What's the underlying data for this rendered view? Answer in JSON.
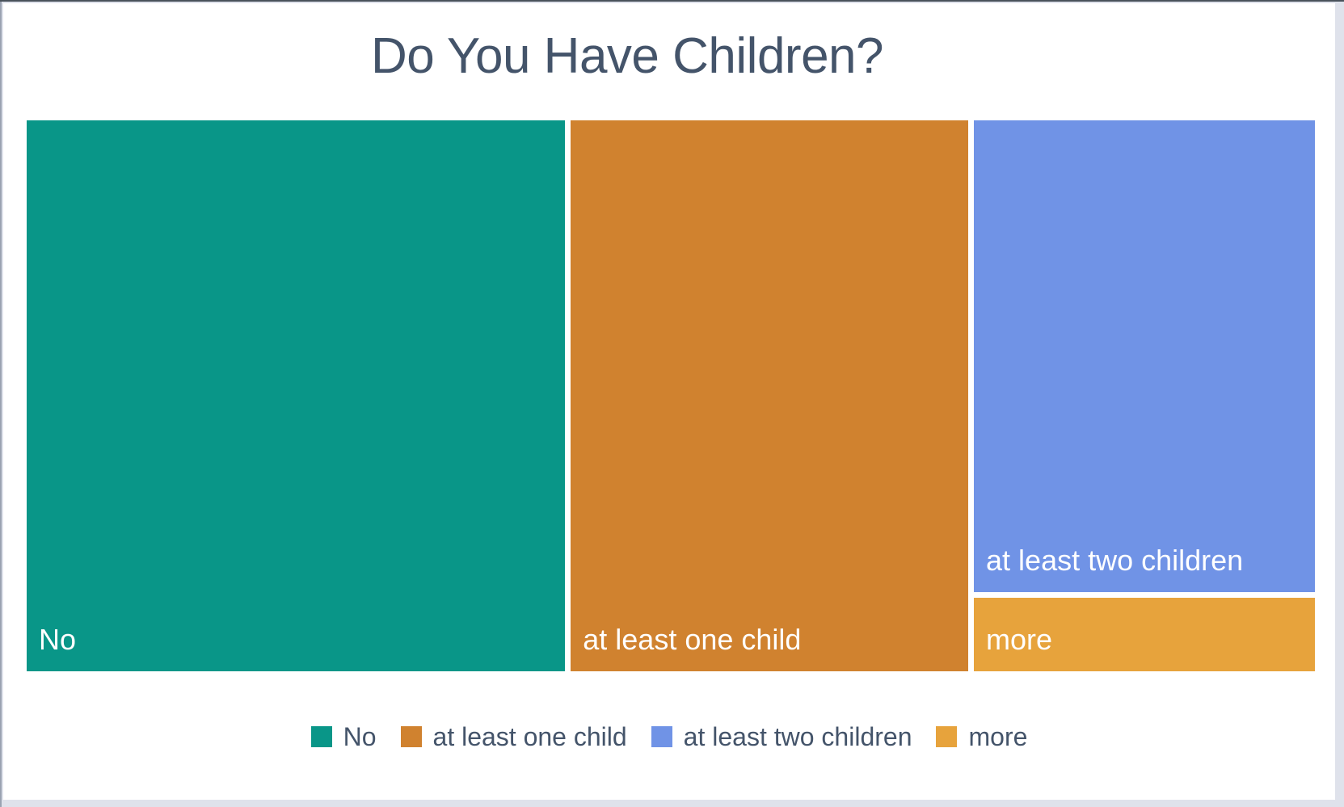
{
  "page": {
    "background_color": "#dfe2eb",
    "card_color": "#ffffff"
  },
  "chart": {
    "title_color": "#44546a",
    "tile_label_color": "#ffffff",
    "legend_text_color": "#44546a"
  },
  "chart_data": {
    "type": "treemap",
    "title": "Do You Have Children?",
    "categories": [
      "No",
      "at least one child",
      "at least two children",
      "more"
    ],
    "values": [
      42,
      31,
      23,
      3.6
    ],
    "values_note": "percent share estimated from tile areas; no numeric labels shown in chart",
    "colors": [
      "#099688",
      "#d0822f",
      "#7093e6",
      "#e7a33c"
    ],
    "legend_position": "bottom",
    "layout": "three columns left-to-right; last two categories stacked in rightmost column"
  },
  "legend": {
    "items": [
      {
        "label": "No",
        "color": "#099688"
      },
      {
        "label": "at least one child",
        "color": "#d0822f"
      },
      {
        "label": "at least two children",
        "color": "#7093e6"
      },
      {
        "label": "more",
        "color": "#e7a33c"
      }
    ]
  }
}
